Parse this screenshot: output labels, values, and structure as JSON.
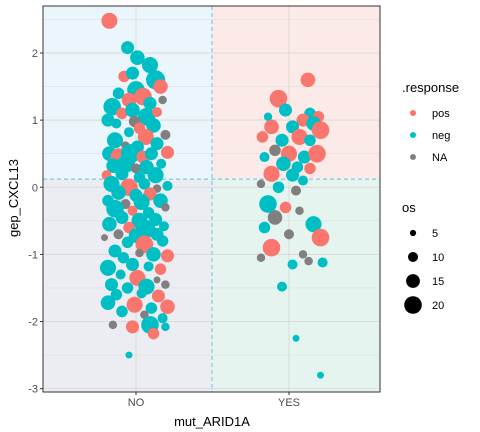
{
  "chart_data": {
    "type": "scatter",
    "xlabel": "mut_ARID1A",
    "ylabel": "gep_CXCL13",
    "categories": [
      "NO",
      "YES"
    ],
    "ylim": [
      -3.05,
      2.7
    ],
    "yticks": [
      -3,
      -2,
      -1,
      0,
      1,
      2
    ],
    "grid": true,
    "hline": 0.12,
    "legend_placement": "right",
    "legend_color_title": ".response",
    "legend_color": [
      {
        "label": "pos",
        "color": "#F8766D"
      },
      {
        "label": "neg",
        "color": "#00BFC4"
      },
      {
        "label": "NA",
        "color": "#808080"
      }
    ],
    "legend_size_title": "os",
    "legend_size": [
      5,
      10,
      15,
      20
    ],
    "quadrant_fills": {
      "top_left": "#eaf6fb",
      "top_right": "#fbeae8",
      "bottom_left": "#ececf3",
      "bottom_right": "#e6f4f0"
    },
    "points": [
      {
        "x": "NO",
        "j": -0.38,
        "y": 2.48,
        "c": "pos",
        "s": 18
      },
      {
        "x": "NO",
        "j": -0.12,
        "y": 2.08,
        "c": "neg",
        "s": 14
      },
      {
        "x": "NO",
        "j": 0.02,
        "y": 1.93,
        "c": "neg",
        "s": 16
      },
      {
        "x": "NO",
        "j": 0.2,
        "y": 1.82,
        "c": "neg",
        "s": 18
      },
      {
        "x": "NO",
        "j": 0.28,
        "y": 1.6,
        "c": "neg",
        "s": 22
      },
      {
        "x": "NO",
        "j": 0.35,
        "y": 1.5,
        "c": "pos",
        "s": 16
      },
      {
        "x": "NO",
        "j": -0.17,
        "y": 1.65,
        "c": "pos",
        "s": 12
      },
      {
        "x": "NO",
        "j": -0.05,
        "y": 1.7,
        "c": "neg",
        "s": 14
      },
      {
        "x": "NO",
        "j": 0.0,
        "y": 1.45,
        "c": "neg",
        "s": 20
      },
      {
        "x": "NO",
        "j": -0.25,
        "y": 1.4,
        "c": "neg",
        "s": 12
      },
      {
        "x": "NO",
        "j": -0.1,
        "y": 1.3,
        "c": "pos",
        "s": 16
      },
      {
        "x": "NO",
        "j": 0.1,
        "y": 1.35,
        "c": "pos",
        "s": 20
      },
      {
        "x": "NO",
        "j": 0.2,
        "y": 1.25,
        "c": "neg",
        "s": 14
      },
      {
        "x": "NO",
        "j": 0.38,
        "y": 1.3,
        "c": "gray",
        "s": 8
      },
      {
        "x": "NO",
        "j": -0.34,
        "y": 1.2,
        "c": "neg",
        "s": 20
      },
      {
        "x": "NO",
        "j": -0.2,
        "y": 1.1,
        "c": "pos",
        "s": 12
      },
      {
        "x": "NO",
        "j": -0.05,
        "y": 1.15,
        "c": "neg",
        "s": 16
      },
      {
        "x": "NO",
        "j": 0.15,
        "y": 1.05,
        "c": "neg",
        "s": 20
      },
      {
        "x": "NO",
        "j": 0.3,
        "y": 1.12,
        "c": "pos",
        "s": 10
      },
      {
        "x": "NO",
        "j": -0.4,
        "y": 1.0,
        "c": "neg",
        "s": 14
      },
      {
        "x": "NO",
        "j": -0.28,
        "y": 0.95,
        "c": "neg",
        "s": 10
      },
      {
        "x": "NO",
        "j": -0.02,
        "y": 0.98,
        "c": "gray",
        "s": 12
      },
      {
        "x": "NO",
        "j": 0.05,
        "y": 0.88,
        "c": "pos",
        "s": 12
      },
      {
        "x": "NO",
        "j": 0.25,
        "y": 0.92,
        "c": "neg",
        "s": 16
      },
      {
        "x": "NO",
        "j": -0.1,
        "y": 0.82,
        "c": "neg",
        "s": 10
      },
      {
        "x": "NO",
        "j": 0.14,
        "y": 0.75,
        "c": "pos",
        "s": 18
      },
      {
        "x": "NO",
        "j": 0.42,
        "y": 0.78,
        "c": "gray",
        "s": 10
      },
      {
        "x": "NO",
        "j": -0.3,
        "y": 0.7,
        "c": "neg",
        "s": 18
      },
      {
        "x": "NO",
        "j": -0.15,
        "y": 0.62,
        "c": "gray",
        "s": 8
      },
      {
        "x": "NO",
        "j": 0.02,
        "y": 0.6,
        "c": "neg",
        "s": 14
      },
      {
        "x": "NO",
        "j": 0.3,
        "y": 0.65,
        "c": "neg",
        "s": 14
      },
      {
        "x": "NO",
        "j": -0.38,
        "y": 0.5,
        "c": "neg",
        "s": 16
      },
      {
        "x": "NO",
        "j": -0.24,
        "y": 0.45,
        "c": "pos",
        "s": 20
      },
      {
        "x": "NO",
        "j": -0.08,
        "y": 0.5,
        "c": "neg",
        "s": 22
      },
      {
        "x": "NO",
        "j": 0.1,
        "y": 0.45,
        "c": "pos",
        "s": 14
      },
      {
        "x": "NO",
        "j": 0.22,
        "y": 0.5,
        "c": "neg",
        "s": 14
      },
      {
        "x": "NO",
        "j": 0.45,
        "y": 0.52,
        "c": "pos",
        "s": 14
      },
      {
        "x": "NO",
        "j": -0.32,
        "y": 0.32,
        "c": "neg",
        "s": 16
      },
      {
        "x": "NO",
        "j": -0.14,
        "y": 0.35,
        "c": "neg",
        "s": 20
      },
      {
        "x": "NO",
        "j": 0.0,
        "y": 0.28,
        "c": "gray",
        "s": 10
      },
      {
        "x": "NO",
        "j": 0.15,
        "y": 0.3,
        "c": "neg",
        "s": 16
      },
      {
        "x": "NO",
        "j": 0.36,
        "y": 0.35,
        "c": "neg",
        "s": 10
      },
      {
        "x": "NO",
        "j": -0.42,
        "y": 0.18,
        "c": "pos",
        "s": 10
      },
      {
        "x": "NO",
        "j": -0.2,
        "y": 0.2,
        "c": "neg",
        "s": 14
      },
      {
        "x": "NO",
        "j": 0.05,
        "y": 0.15,
        "c": "neg",
        "s": 12
      },
      {
        "x": "NO",
        "j": 0.28,
        "y": 0.18,
        "c": "neg",
        "s": 18
      },
      {
        "x": "NO",
        "j": -0.35,
        "y": 0.05,
        "c": "neg",
        "s": 18
      },
      {
        "x": "NO",
        "j": -0.1,
        "y": 0.0,
        "c": "pos",
        "s": 20
      },
      {
        "x": "NO",
        "j": 0.12,
        "y": 0.05,
        "c": "neg",
        "s": 12
      },
      {
        "x": "NO",
        "j": 0.3,
        "y": -0.02,
        "c": "gray",
        "s": 8
      },
      {
        "x": "NO",
        "j": 0.45,
        "y": 0.02,
        "c": "neg",
        "s": 10
      },
      {
        "x": "NO",
        "j": -0.25,
        "y": -0.08,
        "c": "neg",
        "s": 16
      },
      {
        "x": "NO",
        "j": 0.0,
        "y": -0.12,
        "c": "neg",
        "s": 14
      },
      {
        "x": "NO",
        "j": 0.2,
        "y": -0.1,
        "c": "pos",
        "s": 14
      },
      {
        "x": "NO",
        "j": -0.4,
        "y": -0.2,
        "c": "neg",
        "s": 12
      },
      {
        "x": "NO",
        "j": -0.15,
        "y": -0.25,
        "c": "gray",
        "s": 10
      },
      {
        "x": "NO",
        "j": 0.08,
        "y": -0.22,
        "c": "neg",
        "s": 18
      },
      {
        "x": "NO",
        "j": 0.35,
        "y": -0.2,
        "c": "neg",
        "s": 16
      },
      {
        "x": "NO",
        "j": -0.3,
        "y": -0.32,
        "c": "neg",
        "s": 20
      },
      {
        "x": "NO",
        "j": -0.05,
        "y": -0.35,
        "c": "pos",
        "s": 10
      },
      {
        "x": "NO",
        "j": 0.18,
        "y": -0.38,
        "c": "neg",
        "s": 12
      },
      {
        "x": "NO",
        "j": 0.42,
        "y": -0.3,
        "c": "gray",
        "s": 8
      },
      {
        "x": "NO",
        "j": -0.2,
        "y": -0.45,
        "c": "neg",
        "s": 14
      },
      {
        "x": "NO",
        "j": 0.05,
        "y": -0.5,
        "c": "neg",
        "s": 18
      },
      {
        "x": "NO",
        "j": 0.28,
        "y": -0.48,
        "c": "neg",
        "s": 14
      },
      {
        "x": "NO",
        "j": -0.38,
        "y": -0.55,
        "c": "neg",
        "s": 16
      },
      {
        "x": "NO",
        "j": -0.1,
        "y": -0.6,
        "c": "pos",
        "s": 12
      },
      {
        "x": "NO",
        "j": 0.15,
        "y": -0.62,
        "c": "neg",
        "s": 20
      },
      {
        "x": "NO",
        "j": 0.4,
        "y": -0.58,
        "c": "neg",
        "s": 10
      },
      {
        "x": "NO",
        "j": -0.25,
        "y": -0.7,
        "c": "gray",
        "s": 10
      },
      {
        "x": "NO",
        "j": 0.0,
        "y": -0.72,
        "c": "neg",
        "s": 16
      },
      {
        "x": "NO",
        "j": 0.3,
        "y": -0.7,
        "c": "neg",
        "s": 14
      },
      {
        "x": "NO",
        "j": -0.45,
        "y": -0.75,
        "c": "gray",
        "s": 6
      },
      {
        "x": "NO",
        "j": -0.12,
        "y": -0.82,
        "c": "neg",
        "s": 12
      },
      {
        "x": "NO",
        "j": 0.12,
        "y": -0.85,
        "c": "pos",
        "s": 20
      },
      {
        "x": "NO",
        "j": 0.38,
        "y": -0.8,
        "c": "neg",
        "s": 12
      },
      {
        "x": "NO",
        "j": -0.3,
        "y": -0.95,
        "c": "neg",
        "s": 14
      },
      {
        "x": "NO",
        "j": 0.05,
        "y": -0.98,
        "c": "gray",
        "s": 8
      },
      {
        "x": "NO",
        "j": 0.25,
        "y": -1.0,
        "c": "neg",
        "s": 16
      },
      {
        "x": "NO",
        "j": -0.18,
        "y": -1.05,
        "c": "neg",
        "s": 12
      },
      {
        "x": "NO",
        "j": 0.45,
        "y": -1.02,
        "c": "pos",
        "s": 14
      },
      {
        "x": "NO",
        "j": -0.4,
        "y": -1.2,
        "c": "neg",
        "s": 18
      },
      {
        "x": "NO",
        "j": -0.05,
        "y": -1.15,
        "c": "neg",
        "s": 14
      },
      {
        "x": "NO",
        "j": 0.18,
        "y": -1.18,
        "c": "neg",
        "s": 10
      },
      {
        "x": "NO",
        "j": 0.35,
        "y": -1.22,
        "c": "pos",
        "s": 12
      },
      {
        "x": "NO",
        "j": -0.22,
        "y": -1.3,
        "c": "neg",
        "s": 10
      },
      {
        "x": "NO",
        "j": 0.02,
        "y": -1.35,
        "c": "pos",
        "s": 18
      },
      {
        "x": "NO",
        "j": 0.3,
        "y": -1.38,
        "c": "gray",
        "s": 6
      },
      {
        "x": "NO",
        "j": -0.35,
        "y": -1.45,
        "c": "neg",
        "s": 14
      },
      {
        "x": "NO",
        "j": -0.12,
        "y": -1.5,
        "c": "neg",
        "s": 12
      },
      {
        "x": "NO",
        "j": 0.15,
        "y": -1.48,
        "c": "neg",
        "s": 18
      },
      {
        "x": "NO",
        "j": 0.42,
        "y": -1.45,
        "c": "gray",
        "s": 8
      },
      {
        "x": "NO",
        "j": -0.28,
        "y": -1.6,
        "c": "neg",
        "s": 12
      },
      {
        "x": "NO",
        "j": 0.08,
        "y": -1.58,
        "c": "neg",
        "s": 10
      },
      {
        "x": "NO",
        "j": 0.32,
        "y": -1.62,
        "c": "pos",
        "s": 14
      },
      {
        "x": "NO",
        "j": -0.4,
        "y": -1.72,
        "c": "neg",
        "s": 16
      },
      {
        "x": "NO",
        "j": -0.02,
        "y": -1.75,
        "c": "pos",
        "s": 18
      },
      {
        "x": "NO",
        "j": 0.22,
        "y": -1.8,
        "c": "neg",
        "s": 12
      },
      {
        "x": "NO",
        "j": 0.45,
        "y": -1.78,
        "c": "pos",
        "s": 16
      },
      {
        "x": "NO",
        "j": -0.2,
        "y": -1.85,
        "c": "neg",
        "s": 12
      },
      {
        "x": "NO",
        "j": 0.12,
        "y": -1.9,
        "c": "gray",
        "s": 8
      },
      {
        "x": "NO",
        "j": 0.38,
        "y": -1.95,
        "c": "neg",
        "s": 10
      },
      {
        "x": "NO",
        "j": -0.33,
        "y": -2.05,
        "c": "gray",
        "s": 8
      },
      {
        "x": "NO",
        "j": -0.05,
        "y": -2.08,
        "c": "pos",
        "s": 14
      },
      {
        "x": "NO",
        "j": 0.2,
        "y": -2.05,
        "c": "neg",
        "s": 20
      },
      {
        "x": "NO",
        "j": 0.42,
        "y": -2.08,
        "c": "neg",
        "s": 8
      },
      {
        "x": "NO",
        "j": 0.25,
        "y": -2.18,
        "c": "pos",
        "s": 12
      },
      {
        "x": "NO",
        "j": -0.1,
        "y": -2.5,
        "c": "neg",
        "s": 6
      },
      {
        "x": "YES",
        "j": 0.27,
        "y": 1.6,
        "c": "pos",
        "s": 16
      },
      {
        "x": "YES",
        "j": -0.15,
        "y": 1.32,
        "c": "pos",
        "s": 20
      },
      {
        "x": "YES",
        "j": -0.05,
        "y": 1.15,
        "c": "neg",
        "s": 14
      },
      {
        "x": "YES",
        "j": 0.3,
        "y": 1.1,
        "c": "neg",
        "s": 12
      },
      {
        "x": "YES",
        "j": 0.42,
        "y": 1.05,
        "c": "pos",
        "s": 12
      },
      {
        "x": "YES",
        "j": -0.3,
        "y": 1.05,
        "c": "neg",
        "s": 8
      },
      {
        "x": "YES",
        "j": 0.2,
        "y": 1.0,
        "c": "pos",
        "s": 14
      },
      {
        "x": "YES",
        "j": 0.35,
        "y": 0.95,
        "c": "neg",
        "s": 16
      },
      {
        "x": "YES",
        "j": -0.25,
        "y": 0.9,
        "c": "pos",
        "s": 16
      },
      {
        "x": "YES",
        "j": 0.05,
        "y": 0.9,
        "c": "neg",
        "s": 14
      },
      {
        "x": "YES",
        "j": 0.45,
        "y": 0.85,
        "c": "pos",
        "s": 20
      },
      {
        "x": "YES",
        "j": -0.38,
        "y": 0.75,
        "c": "pos",
        "s": 12
      },
      {
        "x": "YES",
        "j": -0.1,
        "y": 0.7,
        "c": "neg",
        "s": 14
      },
      {
        "x": "YES",
        "j": 0.15,
        "y": 0.75,
        "c": "pos",
        "s": 18
      },
      {
        "x": "YES",
        "j": 0.3,
        "y": 0.7,
        "c": "neg",
        "s": 12
      },
      {
        "x": "YES",
        "j": -0.2,
        "y": 0.55,
        "c": "gray",
        "s": 12
      },
      {
        "x": "YES",
        "j": 0.0,
        "y": 0.5,
        "c": "pos",
        "s": 18
      },
      {
        "x": "YES",
        "j": 0.22,
        "y": 0.45,
        "c": "neg",
        "s": 14
      },
      {
        "x": "YES",
        "j": 0.4,
        "y": 0.5,
        "c": "pos",
        "s": 20
      },
      {
        "x": "YES",
        "j": -0.35,
        "y": 0.45,
        "c": "neg",
        "s": 10
      },
      {
        "x": "YES",
        "j": -0.08,
        "y": 0.35,
        "c": "neg",
        "s": 16
      },
      {
        "x": "YES",
        "j": 0.12,
        "y": 0.3,
        "c": "neg",
        "s": 12
      },
      {
        "x": "YES",
        "j": 0.3,
        "y": 0.28,
        "c": "pos",
        "s": 12
      },
      {
        "x": "YES",
        "j": -0.25,
        "y": 0.2,
        "c": "pos",
        "s": 18
      },
      {
        "x": "YES",
        "j": 0.05,
        "y": 0.18,
        "c": "neg",
        "s": 14
      },
      {
        "x": "YES",
        "j": 0.2,
        "y": 0.1,
        "c": "neg",
        "s": 10
      },
      {
        "x": "YES",
        "j": -0.4,
        "y": 0.05,
        "c": "gray",
        "s": 8
      },
      {
        "x": "YES",
        "j": -0.15,
        "y": 0.0,
        "c": "neg",
        "s": 12
      },
      {
        "x": "YES",
        "j": 0.1,
        "y": -0.05,
        "c": "gray",
        "s": 10
      },
      {
        "x": "YES",
        "j": -0.3,
        "y": -0.25,
        "c": "neg",
        "s": 20
      },
      {
        "x": "YES",
        "j": -0.05,
        "y": -0.3,
        "c": "pos",
        "s": 12
      },
      {
        "x": "YES",
        "j": 0.15,
        "y": -0.35,
        "c": "gray",
        "s": 8
      },
      {
        "x": "YES",
        "j": -0.2,
        "y": -0.45,
        "c": "gray",
        "s": 16
      },
      {
        "x": "YES",
        "j": 0.35,
        "y": -0.55,
        "c": "neg",
        "s": 18
      },
      {
        "x": "YES",
        "j": -0.35,
        "y": -0.6,
        "c": "neg",
        "s": 12
      },
      {
        "x": "YES",
        "j": 0.0,
        "y": -0.7,
        "c": "gray",
        "s": 10
      },
      {
        "x": "YES",
        "j": 0.45,
        "y": -0.75,
        "c": "pos",
        "s": 20
      },
      {
        "x": "YES",
        "j": -0.25,
        "y": -0.9,
        "c": "pos",
        "s": 20
      },
      {
        "x": "YES",
        "j": 0.2,
        "y": -1.0,
        "c": "gray",
        "s": 8
      },
      {
        "x": "YES",
        "j": -0.4,
        "y": -1.05,
        "c": "gray",
        "s": 8
      },
      {
        "x": "YES",
        "j": 0.05,
        "y": -1.15,
        "c": "neg",
        "s": 10
      },
      {
        "x": "YES",
        "j": 0.28,
        "y": -1.1,
        "c": "gray",
        "s": 8
      },
      {
        "x": "YES",
        "j": 0.48,
        "y": -1.12,
        "c": "neg",
        "s": 10
      },
      {
        "x": "YES",
        "j": -0.1,
        "y": -1.48,
        "c": "neg",
        "s": 10
      },
      {
        "x": "YES",
        "j": 0.1,
        "y": -2.25,
        "c": "neg",
        "s": 6
      },
      {
        "x": "YES",
        "j": 0.45,
        "y": -2.8,
        "c": "neg",
        "s": 6
      }
    ]
  }
}
